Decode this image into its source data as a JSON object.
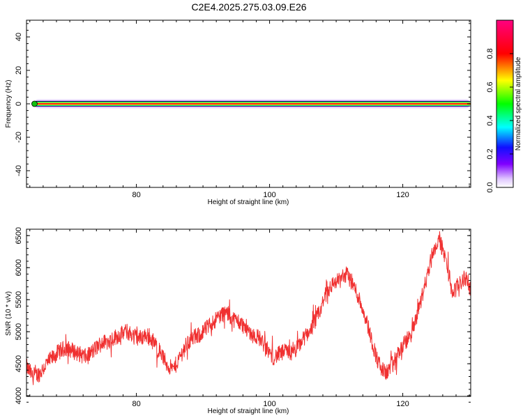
{
  "title": "C2E4.2025.275.03.09.E26",
  "colors": {
    "snr_line": "#f03030",
    "ridge_outer": "#8000ff",
    "ridge_blue": "#2020ff",
    "ridge_cyan": "#00ffff",
    "ridge_green": "#10c010",
    "ridge_yellow": "#ffff00",
    "ridge_red": "#ff2020"
  },
  "chart_data": [
    {
      "type": "heatmap",
      "xlabel": "Height of straight line (km)",
      "ylabel": "Frequency (Hz)",
      "xlim": [
        63.5,
        130.2
      ],
      "ylim": [
        -50,
        50
      ],
      "xticks": [
        {
          "v": 80,
          "label": "80"
        },
        {
          "v": 100,
          "label": "100"
        },
        {
          "v": 120,
          "label": "120"
        }
      ],
      "yticks": [
        {
          "v": 40,
          "label": "40"
        },
        {
          "v": 20,
          "label": "20"
        },
        {
          "v": 0,
          "label": "0"
        },
        {
          "v": -20,
          "label": "-20"
        },
        {
          "v": -40,
          "label": "-40"
        }
      ],
      "ridge": {
        "frequency": 0,
        "x_start": 64.6,
        "x_end": 130.2
      },
      "colorbar": {
        "label": "Normalized spectral amplitude",
        "range": [
          0,
          1
        ],
        "ticks": [
          {
            "v": 0.0,
            "label": "0.0"
          },
          {
            "v": 0.2,
            "label": "0.2"
          },
          {
            "v": 0.4,
            "label": "0.4"
          },
          {
            "v": 0.6,
            "label": "0.6"
          },
          {
            "v": 0.8,
            "label": "0.8"
          }
        ]
      }
    },
    {
      "type": "line",
      "xlabel": "Height of straight line (km)",
      "ylabel": "SNR (10 * v/v)",
      "xlim": [
        63.5,
        130.2
      ],
      "ylim": [
        3990,
        6600
      ],
      "xticks": [
        {
          "v": 80,
          "label": "80"
        },
        {
          "v": 100,
          "label": "100"
        },
        {
          "v": 120,
          "label": "120"
        }
      ],
      "yticks": [
        {
          "v": 4000,
          "label": "4000"
        },
        {
          "v": 4500,
          "label": "4500"
        },
        {
          "v": 5000,
          "label": "5000"
        },
        {
          "v": 5500,
          "label": "5500"
        },
        {
          "v": 6000,
          "label": "6000"
        },
        {
          "v": 6500,
          "label": "6500"
        }
      ],
      "series": [
        {
          "x": [
            63.5,
            64.5,
            65.5,
            66.5,
            67.5,
            68.5,
            69.5,
            70.5,
            71.5,
            72.5,
            73.5,
            74.5,
            75.5,
            76.5,
            77.5,
            78.5,
            79.5,
            80.5,
            81.5,
            82.5,
            83.5,
            84.5,
            85.5,
            86.5,
            87.5,
            88.5,
            89.5,
            90.5,
            91.5,
            92.5,
            93.5,
            94.5,
            95.5,
            96.5,
            97.5,
            98.5,
            99.5,
            100.5,
            101.5,
            102.5,
            103.5,
            104.5,
            105.5,
            106.5,
            107.5,
            108.5,
            109.5,
            110.5,
            111.5,
            112.5,
            113.5,
            114.5,
            115.5,
            116.5,
            117.5,
            118.5,
            119.5,
            120.5,
            121.5,
            122.5,
            123.5,
            124.5,
            125.5,
            126.5,
            127.5,
            128.5,
            129.5,
            130.2
          ],
          "values": [
            4450,
            4300,
            4350,
            4500,
            4600,
            4700,
            4750,
            4700,
            4650,
            4600,
            4700,
            4800,
            4850,
            4900,
            4950,
            5000,
            4950,
            4900,
            4950,
            4850,
            4700,
            4500,
            4400,
            4600,
            4800,
            4900,
            4950,
            5050,
            5150,
            5250,
            5300,
            5200,
            5150,
            5050,
            4950,
            4900,
            4750,
            4600,
            4650,
            4700,
            4650,
            4800,
            4950,
            5100,
            5300,
            5600,
            5750,
            5800,
            5900,
            5750,
            5500,
            5200,
            4800,
            4450,
            4350,
            4500,
            4700,
            4850,
            5000,
            5400,
            5800,
            6250,
            6450,
            6100,
            5600,
            5750,
            5850,
            5650
          ]
        }
      ]
    }
  ]
}
